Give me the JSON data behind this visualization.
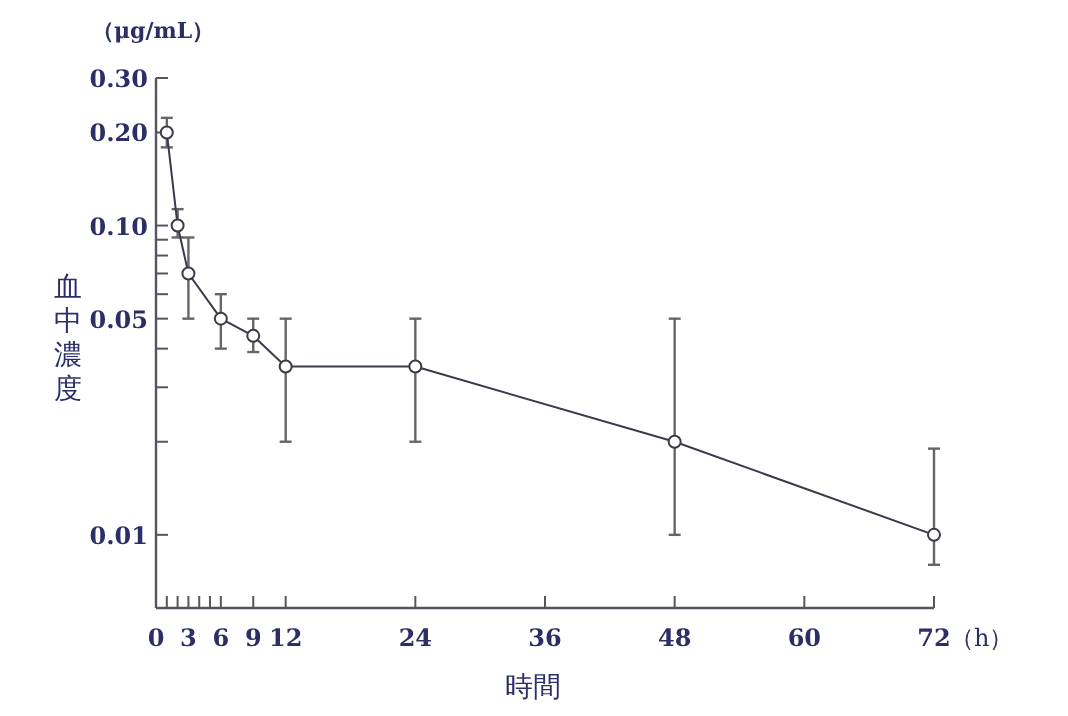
{
  "chart_data": {
    "type": "line",
    "xlabel": "時間",
    "ylabel": "血中濃度",
    "annotations": [
      "（μg/mL）",
      "（h）"
    ],
    "x": [
      1,
      2,
      3,
      6,
      9,
      12,
      24,
      48,
      72
    ],
    "series": [
      {
        "color": "#3a3a4a",
        "values": [
          0.2,
          0.1,
          0.07,
          0.05,
          0.044,
          0.035,
          0.035,
          0.02,
          0.01
        ],
        "errors": [
          [
            0.179,
            0.223
          ],
          [
            0.0915,
            0.113
          ],
          [
            0.05,
            0.0915
          ],
          [
            0.04,
            0.06
          ],
          [
            0.039,
            0.05
          ],
          [
            0.02,
            0.05
          ],
          [
            0.02,
            0.05
          ],
          [
            0.01,
            0.05
          ],
          [
            0.008,
            0.019
          ]
        ]
      }
    ],
    "log": "y",
    "xlim": [
      0,
      72
    ],
    "ylim": [
      0.0058,
      0.3
    ],
    "xticks": [
      0,
      {
        "value": 1,
        "label": null
      },
      {
        "value": 2,
        "label": null
      },
      3,
      {
        "value": 4,
        "label": null
      },
      {
        "value": 5,
        "label": null
      },
      6,
      9,
      12,
      24,
      36,
      48,
      60,
      72
    ],
    "yticks": [
      {
        "value": 0.3,
        "label": "0.30"
      },
      {
        "value": 0.2,
        "label": "0.20"
      },
      {
        "value": 0.1,
        "label": "0.10"
      },
      {
        "value": 0.09,
        "label": null
      },
      {
        "value": 0.08,
        "label": null
      },
      {
        "value": 0.07,
        "label": null
      },
      {
        "value": 0.06,
        "label": null
      },
      0.05,
      {
        "value": 0.04,
        "label": null
      },
      {
        "value": 0.03,
        "label": null
      },
      {
        "value": 0.02,
        "label": null
      },
      0.01
    ],
    "marker": "circle",
    "line_style": "solid",
    "grid": false
  }
}
